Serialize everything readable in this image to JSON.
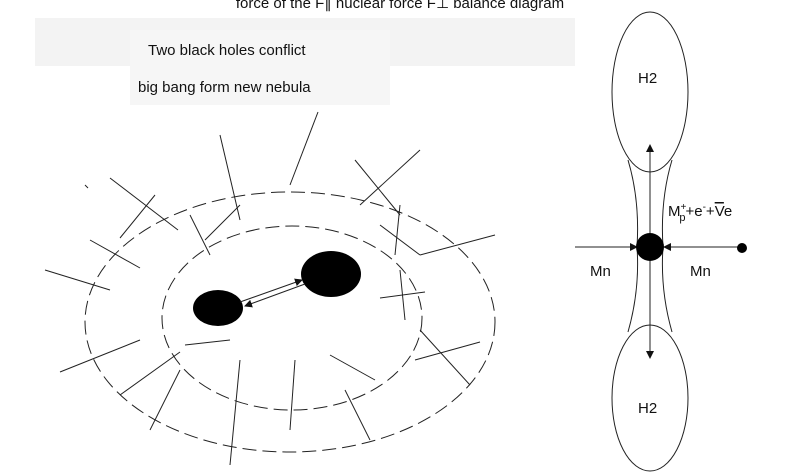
{
  "title": "force of the F∥ nuclear force F⊥ balance diagram",
  "left_diagram": {
    "caption_line1": "Two black holes conflict",
    "caption_line2": "big bang form new nebula"
  },
  "right_diagram": {
    "upper_label": "H2",
    "lower_label": "H2",
    "left_force": "Mn",
    "right_force": "Mn",
    "formula": {
      "m": "M",
      "m_sup": "+",
      "m_sub": "p",
      "e": "+e",
      "e_sup": "-",
      "plus": "+",
      "v": "V",
      "v_tail": "e"
    }
  }
}
